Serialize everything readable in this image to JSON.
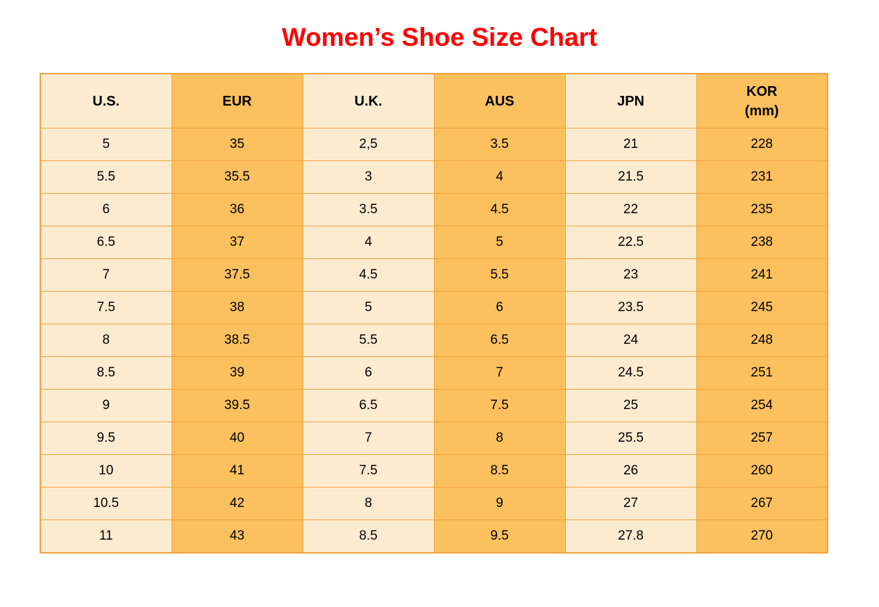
{
  "page": {
    "title": "Women’s Shoe Size Chart",
    "title_color": "#FF0000",
    "background": "#FFFFFF"
  },
  "table": {
    "headers": [
      {
        "id": "us",
        "label": "U.S.",
        "sub": ""
      },
      {
        "id": "eur",
        "label": "EUR",
        "sub": ""
      },
      {
        "id": "uk",
        "label": "U.K.",
        "sub": ""
      },
      {
        "id": "aus",
        "label": "AUS",
        "sub": ""
      },
      {
        "id": "jpn",
        "label": "JPN",
        "sub": ""
      },
      {
        "id": "kor",
        "label": "KOR",
        "sub": "(mm)"
      }
    ],
    "rows": [
      [
        "5",
        "35",
        "2,5",
        "3.5",
        "21",
        "228"
      ],
      [
        "5.5",
        "35.5",
        "3",
        "4",
        "21.5",
        "231"
      ],
      [
        "6",
        "36",
        "3.5",
        "4.5",
        "22",
        "235"
      ],
      [
        "6.5",
        "37",
        "4",
        "5",
        "22.5",
        "238"
      ],
      [
        "7",
        "37.5",
        "4.5",
        "5.5",
        "23",
        "241"
      ],
      [
        "7.5",
        "38",
        "5",
        "6",
        "23.5",
        "245"
      ],
      [
        "8",
        "38.5",
        "5.5",
        "6.5",
        "24",
        "248"
      ],
      [
        "8.5",
        "39",
        "6",
        "7",
        "24.5",
        "251"
      ],
      [
        "9",
        "39.5",
        "6.5",
        "7.5",
        "25",
        "254"
      ],
      [
        "9.5",
        "40",
        "7",
        "8",
        "25.5",
        "257"
      ],
      [
        "10",
        "41",
        "7.5",
        "8.5",
        "26",
        "260"
      ],
      [
        "10.5",
        "42",
        "8",
        "9",
        "27",
        "267"
      ],
      [
        "11",
        "43",
        "8.5",
        "9.5",
        "27.8",
        "270"
      ]
    ],
    "colors": {
      "header_bg": "#4A86C6",
      "col_light": "#FDEBD0",
      "col_dark": "#FCC05E",
      "border": "#F0A33C",
      "text": "#000000"
    }
  },
  "chart_data": {
    "type": "table",
    "title": "Women’s Shoe Size Chart",
    "columns": [
      "U.S.",
      "EUR",
      "U.K.",
      "AUS",
      "JPN",
      "KOR (mm)"
    ],
    "rows": [
      [
        "5",
        "35",
        "2,5",
        "3.5",
        "21",
        "228"
      ],
      [
        "5.5",
        "35.5",
        "3",
        "4",
        "21.5",
        "231"
      ],
      [
        "6",
        "36",
        "3.5",
        "4.5",
        "22",
        "235"
      ],
      [
        "6.5",
        "37",
        "4",
        "5",
        "22.5",
        "238"
      ],
      [
        "7",
        "37.5",
        "4.5",
        "5.5",
        "23",
        "241"
      ],
      [
        "7.5",
        "38",
        "5",
        "6",
        "23.5",
        "245"
      ],
      [
        "8",
        "38.5",
        "5.5",
        "6.5",
        "24",
        "248"
      ],
      [
        "8.5",
        "39",
        "6",
        "7",
        "24.5",
        "251"
      ],
      [
        "9",
        "39.5",
        "6.5",
        "7.5",
        "25",
        "254"
      ],
      [
        "9.5",
        "40",
        "7",
        "8",
        "25.5",
        "257"
      ],
      [
        "10",
        "41",
        "7.5",
        "8.5",
        "26",
        "260"
      ],
      [
        "10.5",
        "42",
        "8",
        "9",
        "27",
        "267"
      ],
      [
        "11",
        "43",
        "8.5",
        "9.5",
        "27.8",
        "270"
      ]
    ],
    "layout_hints": {
      "column_fill_alternation": [
        "light",
        "dark",
        "light",
        "dark",
        "light",
        "dark"
      ],
      "header_fill": "blue",
      "grid": "on"
    }
  }
}
